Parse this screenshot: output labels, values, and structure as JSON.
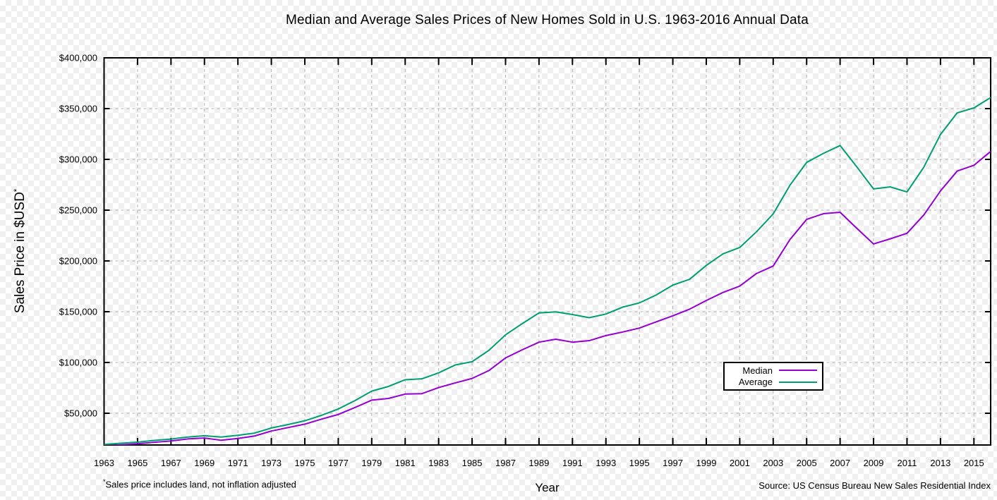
{
  "footnote": {
    "marker": "*",
    "text": "Sales price includes land, not inflation adjusted"
  },
  "source": "Source: US Census Bureau New Sales Residential Index",
  "chart_data": {
    "type": "line",
    "title": "Median and Average Sales Prices of New Homes Sold in U.S. 1963-2016 Annual Data",
    "xlabel": "Year",
    "ylabel": "Sales Price in $USD",
    "ylabel_marker": "*",
    "grid": true,
    "legend_position": "inside-bottom-right",
    "xlim": [
      1963,
      2016
    ],
    "ylim": [
      18750,
      400000
    ],
    "x": [
      1963,
      1964,
      1965,
      1966,
      1967,
      1968,
      1969,
      1970,
      1971,
      1972,
      1973,
      1974,
      1975,
      1976,
      1977,
      1978,
      1979,
      1980,
      1981,
      1982,
      1983,
      1984,
      1985,
      1986,
      1987,
      1988,
      1989,
      1990,
      1991,
      1992,
      1993,
      1994,
      1995,
      1996,
      1997,
      1998,
      1999,
      2000,
      2001,
      2002,
      2003,
      2004,
      2005,
      2006,
      2007,
      2008,
      2009,
      2010,
      2011,
      2012,
      2013,
      2014,
      2015,
      2016
    ],
    "series": [
      {
        "name": "Median",
        "color": "#9400d3",
        "values": [
          18000,
          18900,
          20000,
          21400,
          22700,
          24700,
          25600,
          23400,
          25200,
          27600,
          32500,
          35900,
          39300,
          44200,
          48800,
          55700,
          62900,
          64600,
          68900,
          69300,
          75300,
          79900,
          84300,
          92000,
          104500,
          112500,
          120000,
          122900,
          120000,
          121500,
          126500,
          130000,
          133900,
          140000,
          146000,
          152500,
          161000,
          169000,
          175200,
          187600,
          195000,
          221000,
          240900,
          246500,
          247900,
          232100,
          216700,
          221800,
          227200,
          245200,
          268900,
          288500,
          294200,
          307800
        ]
      },
      {
        "name": "Average",
        "color": "#009e73",
        "values": [
          19300,
          20500,
          21500,
          23300,
          24600,
          26600,
          27900,
          26600,
          28300,
          30500,
          35500,
          38900,
          42600,
          48000,
          54200,
          62500,
          71800,
          76400,
          83000,
          83900,
          89800,
          97600,
          100800,
          111900,
          127200,
          138300,
          148800,
          149800,
          147200,
          144100,
          147700,
          154500,
          158700,
          166400,
          176200,
          181900,
          195600,
          207000,
          213200,
          228700,
          246300,
          274500,
          297000,
          305900,
          313600,
          292600,
          270900,
          272900,
          267900,
          292200,
          324500,
          345800,
          350700,
          360900
        ]
      }
    ],
    "x_ticks": {
      "values": [
        1963,
        1965,
        1967,
        1969,
        1971,
        1973,
        1975,
        1977,
        1979,
        1981,
        1983,
        1985,
        1987,
        1989,
        1991,
        1993,
        1995,
        1997,
        1999,
        2001,
        2003,
        2005,
        2007,
        2009,
        2011,
        2013,
        2015
      ],
      "labels": [
        "1963",
        "1965",
        "1967",
        "1969",
        "1971",
        "1973",
        "1975",
        "1977",
        "1979",
        "1981",
        "1983",
        "1985",
        "1987",
        "1989",
        "1991",
        "1993",
        "1995",
        "1997",
        "1999",
        "2001",
        "2003",
        "2005",
        "2007",
        "2009",
        "2011",
        "2013",
        "2015"
      ]
    },
    "y_ticks": {
      "values": [
        50000,
        100000,
        150000,
        200000,
        250000,
        300000,
        350000,
        400000
      ],
      "labels": [
        "$50,000",
        "$100,000",
        "$150,000",
        "$200,000",
        "$250,000",
        "$300,000",
        "$350,000",
        "$400,000"
      ]
    }
  }
}
